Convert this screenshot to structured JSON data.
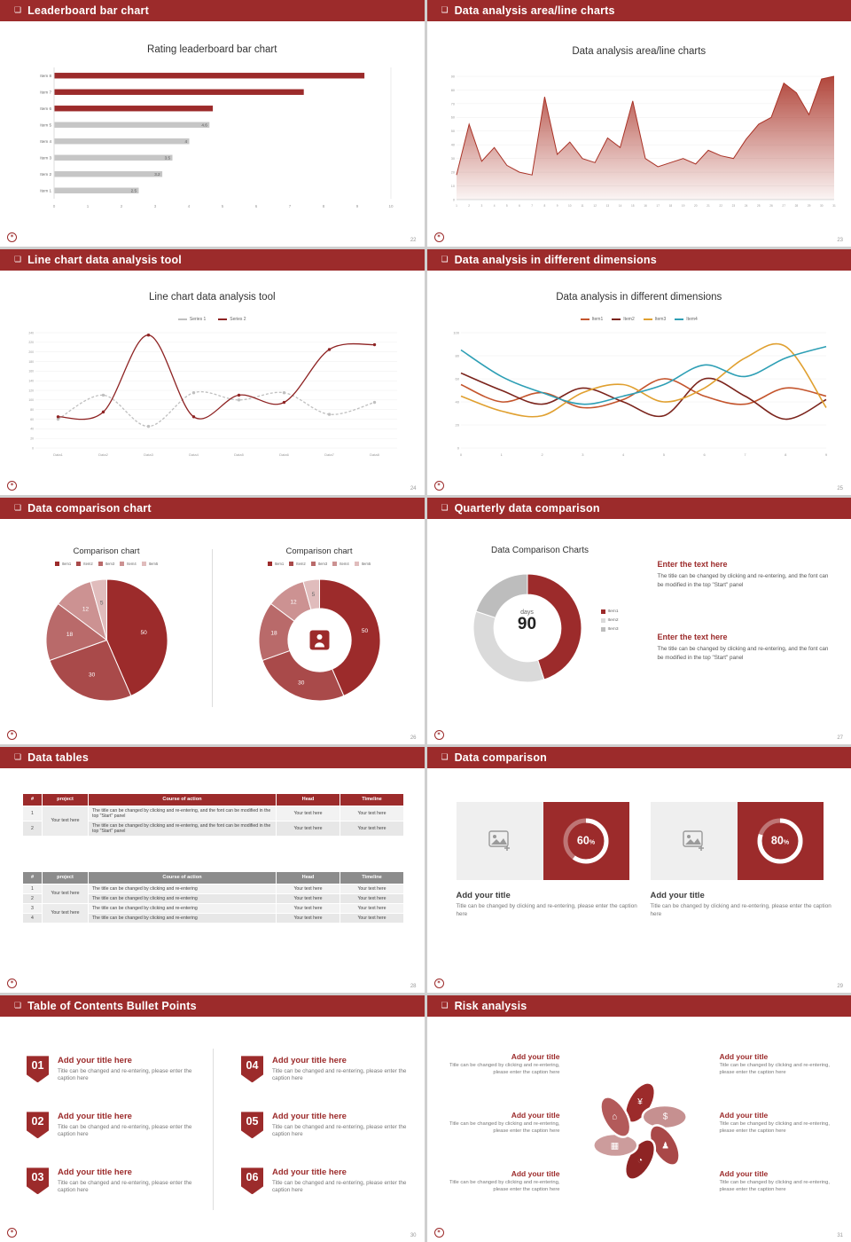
{
  "accent": "#9C2B2B",
  "common": {
    "header_icon": "❏",
    "logo_icon": "✶"
  },
  "slides": [
    {
      "header": "Leaderboard bar chart",
      "page": "22",
      "title": "Rating leaderboard bar chart",
      "chart_data": {
        "type": "barh",
        "categories": [
          "Item 8",
          "Item 7",
          "Item 6",
          "Item 5",
          "Item 4",
          "Item 3",
          "Item 2",
          "Item 1"
        ],
        "values": [
          9.2,
          7.4,
          4.7,
          4.6,
          4,
          3.5,
          3.2,
          2.5
        ],
        "labels": [
          "",
          "",
          "",
          "4.6",
          "4",
          "3.5",
          "3.2",
          "2.5"
        ],
        "colors": [
          "#9C2B2B",
          "#9C2B2B",
          "#9C2B2B",
          "#C6C6C6",
          "#C6C6C6",
          "#C6C6C6",
          "#C6C6C6",
          "#C6C6C6"
        ],
        "xlim": [
          0,
          10
        ],
        "xticks": [
          0,
          1,
          2,
          3,
          4,
          5,
          6,
          7,
          8,
          9,
          10
        ]
      }
    },
    {
      "header": "Data analysis area/line charts",
      "page": "23",
      "title": "Data analysis area/line charts",
      "chart_data": {
        "type": "area",
        "x": [
          1,
          2,
          3,
          4,
          5,
          6,
          7,
          8,
          9,
          10,
          11,
          12,
          13,
          14,
          15,
          16,
          17,
          18,
          19,
          20,
          21,
          22,
          23,
          24,
          25,
          26,
          27,
          28,
          29,
          30,
          31
        ],
        "values": [
          18,
          55,
          28,
          38,
          25,
          20,
          18,
          75,
          33,
          42,
          30,
          27,
          45,
          38,
          72,
          30,
          24,
          27,
          30,
          26,
          36,
          32,
          30,
          44,
          55,
          60,
          85,
          78,
          62,
          88,
          90
        ],
        "ylim": [
          0,
          90
        ],
        "yticks": [
          0,
          10,
          20,
          30,
          40,
          50,
          60,
          70,
          80,
          90
        ],
        "color": "#A93226"
      }
    },
    {
      "header": "Line chart data analysis tool",
      "page": "24",
      "title": "Line chart data analysis tool",
      "chart_data": {
        "type": "line",
        "categories": [
          "Data1",
          "Data2",
          "Data3",
          "Data4",
          "Data5",
          "Data6",
          "Data7",
          "Data8"
        ],
        "ylim": [
          0,
          240
        ],
        "yticks": [
          0,
          20,
          40,
          60,
          80,
          100,
          120,
          140,
          160,
          180,
          200,
          220,
          240
        ],
        "series": [
          {
            "name": "Series 1",
            "color": "#BFBFBF",
            "dashed": true,
            "values": [
              60,
              110,
              45,
              115,
              100,
              115,
              70,
              95
            ]
          },
          {
            "name": "Series 2",
            "color": "#8E2323",
            "dashed": false,
            "values": [
              65,
              75,
              235,
              65,
              110,
              95,
              205,
              215
            ]
          }
        ]
      }
    },
    {
      "header": "Data analysis in different dimensions",
      "page": "25",
      "title": "Data analysis in different dimensions",
      "chart_data": {
        "type": "multiline",
        "x": [
          0,
          1,
          2,
          3,
          4,
          5,
          6,
          7,
          8,
          9
        ],
        "ylim": [
          0,
          100
        ],
        "yticks": [
          0,
          20,
          40,
          60,
          80,
          100
        ],
        "series": [
          {
            "name": "Item1",
            "color": "#C4552D",
            "values": [
              55,
              40,
              48,
              35,
              42,
              60,
              45,
              38,
              52,
              45
            ]
          },
          {
            "name": "Item2",
            "color": "#7B241C",
            "values": [
              65,
              50,
              38,
              52,
              40,
              28,
              60,
              45,
              25,
              42
            ]
          },
          {
            "name": "Item3",
            "color": "#E0A030",
            "values": [
              45,
              32,
              28,
              48,
              55,
              40,
              52,
              78,
              88,
              35
            ]
          },
          {
            "name": "Item4",
            "color": "#2E9FB5",
            "values": [
              85,
              62,
              48,
              38,
              45,
              55,
              72,
              62,
              78,
              88
            ]
          }
        ]
      }
    },
    {
      "header": "Data comparison chart",
      "page": "26",
      "left_title": "Comparison chart",
      "right_title": "Comparison chart",
      "legend": [
        "Item1",
        "Item2",
        "Item3",
        "Item4",
        "Item5"
      ],
      "chart_data": {
        "type": "pie",
        "values": [
          50,
          30,
          18,
          12,
          5
        ],
        "colors": [
          "#9C2B2B",
          "#A94A4A",
          "#B96A6A",
          "#CC9292",
          "#E0BCBC"
        ],
        "label_colors": [
          "#fff",
          "#fff",
          "#fff",
          "#fff",
          "#666"
        ]
      }
    },
    {
      "header": "Quarterly data comparison",
      "page": "27",
      "title": "Data Comparison Charts",
      "center_label": "days",
      "center_value": "90",
      "legend": [
        "Item1",
        "Item2",
        "Item3"
      ],
      "chart_data": {
        "type": "donut",
        "values": [
          45,
          35,
          20
        ],
        "colors": [
          "#9C2B2B",
          "#DADADA",
          "#BDBDBD"
        ]
      },
      "blocks": [
        {
          "title": "Enter the text here",
          "body": "The title can be changed by clicking and re-entering, and the font can be modified in the top \"Start\" panel"
        },
        {
          "title": "Enter the text here",
          "body": "The title can be changed by clicking and re-entering, and the font can be modified in the top \"Start\" panel"
        }
      ]
    },
    {
      "header": "Data tables",
      "page": "28",
      "table1": {
        "headers": [
          "#",
          "project",
          "Course of action",
          "Head",
          "Timeline"
        ],
        "project": "Your text here",
        "rows": [
          {
            "num": "1",
            "course": "The title can be changed by clicking and re-entering, and the font can be modified in the top \"Start\" panel",
            "head": "Your text here",
            "timeline": "Your text here"
          },
          {
            "num": "2",
            "course": "The title can be changed by clicking and re-entering, and the font can be modified in the top \"Start\" panel",
            "head": "Your text here",
            "timeline": "Your text here"
          }
        ]
      },
      "table2": {
        "headers": [
          "#",
          "project",
          "Course of action",
          "Head",
          "Timeline"
        ],
        "project1": "Your text here",
        "project2": "Your text here",
        "rows": [
          {
            "num": "1",
            "course": "The title can be changed by clicking and re-entering",
            "head": "Your text here",
            "timeline": "Your text here"
          },
          {
            "num": "2",
            "course": "The title can be changed by clicking and re-entering",
            "head": "Your text here",
            "timeline": "Your text here"
          },
          {
            "num": "3",
            "course": "The title can be changed by clicking and re-entering",
            "head": "Your text here",
            "timeline": "Your text here"
          },
          {
            "num": "4",
            "course": "The title can be changed by clicking and re-entering",
            "head": "Your text here",
            "timeline": "Your text here"
          }
        ]
      }
    },
    {
      "header": "Data comparison",
      "page": "29",
      "cards": [
        {
          "percent": 60,
          "percent_text": "60",
          "suffix": "%",
          "title": "Add your title",
          "caption": "Title can be changed by clicking and re-entering, please enter the caption here"
        },
        {
          "percent": 80,
          "percent_text": "80",
          "suffix": "%",
          "title": "Add your title",
          "caption": "Title can be changed by clicking and re-entering, please enter the caption here"
        }
      ]
    },
    {
      "header": "Table of Contents Bullet Points",
      "page": "30",
      "items": [
        {
          "num": "01",
          "title": "Add your title here",
          "caption": "Title can be changed and re-entering, please enter the caption here"
        },
        {
          "num": "02",
          "title": "Add your title here",
          "caption": "Title can be changed and re-entering, please enter the caption here"
        },
        {
          "num": "03",
          "title": "Add your title here",
          "caption": "Title can be changed and re-entering, please enter the caption here"
        },
        {
          "num": "04",
          "title": "Add your title here",
          "caption": "Title can be changed and re-entering, please enter the caption here"
        },
        {
          "num": "05",
          "title": "Add your title here",
          "caption": "Title can be changed and re-entering, please enter the caption here"
        },
        {
          "num": "06",
          "title": "Add your title here",
          "caption": "Title can be changed and re-entering, please enter the caption here"
        }
      ]
    },
    {
      "header": "Risk analysis",
      "page": "31",
      "items": [
        {
          "title": "Add your title",
          "caption": "Title can be changed by clicking and re-entering, please enter the caption here"
        },
        {
          "title": "Add your title",
          "caption": "Title can be changed by clicking and re-entering, please enter the caption here"
        },
        {
          "title": "Add your title",
          "caption": "Title can be changed by clicking and re-entering, please enter the caption here"
        },
        {
          "title": "Add your title",
          "caption": "Title can be changed by clicking and re-entering, please enter the caption here"
        },
        {
          "title": "Add your title",
          "caption": "Title can be changed by clicking and re-entering, please enter the caption here"
        },
        {
          "title": "Add your title",
          "caption": "Title can be changed by clicking and re-entering, please enter the caption here"
        }
      ],
      "icons": [
        "¥",
        "$",
        "♟",
        "◔",
        "▦",
        "⌂"
      ],
      "petal_colors": [
        "#9C2B2B",
        "#C69090",
        "#A94848",
        "#8E2424",
        "#CC9C9C",
        "#B35A5A"
      ]
    }
  ]
}
